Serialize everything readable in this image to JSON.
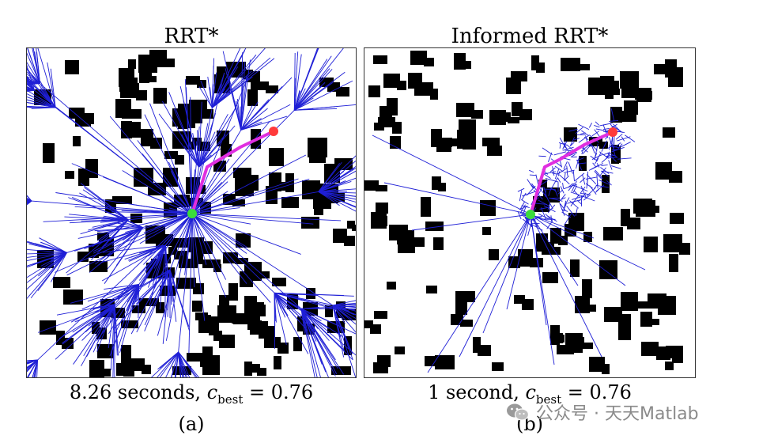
{
  "figure": {
    "left": {
      "title": "RRT*",
      "caption_time": "8.26 seconds, ",
      "caption_c": "c",
      "caption_sub": "best",
      "caption_eq": " = 0.76",
      "label": "(a)",
      "c_best": 0.76,
      "seconds": 8.26
    },
    "right": {
      "title": "Informed RRT*",
      "caption_time": "1 second, ",
      "caption_c": "c",
      "caption_sub": "best",
      "caption_eq": " = 0.76",
      "label": "(b)",
      "c_best": 0.76,
      "seconds": 1
    }
  },
  "colors": {
    "tree": "#1f1fd6",
    "path": "#e02ee0",
    "start": "#3bdc3b",
    "goal": "#ff3a3a",
    "obstacle": "#000000"
  },
  "watermark": "公众号 · 天天Matlab"
}
